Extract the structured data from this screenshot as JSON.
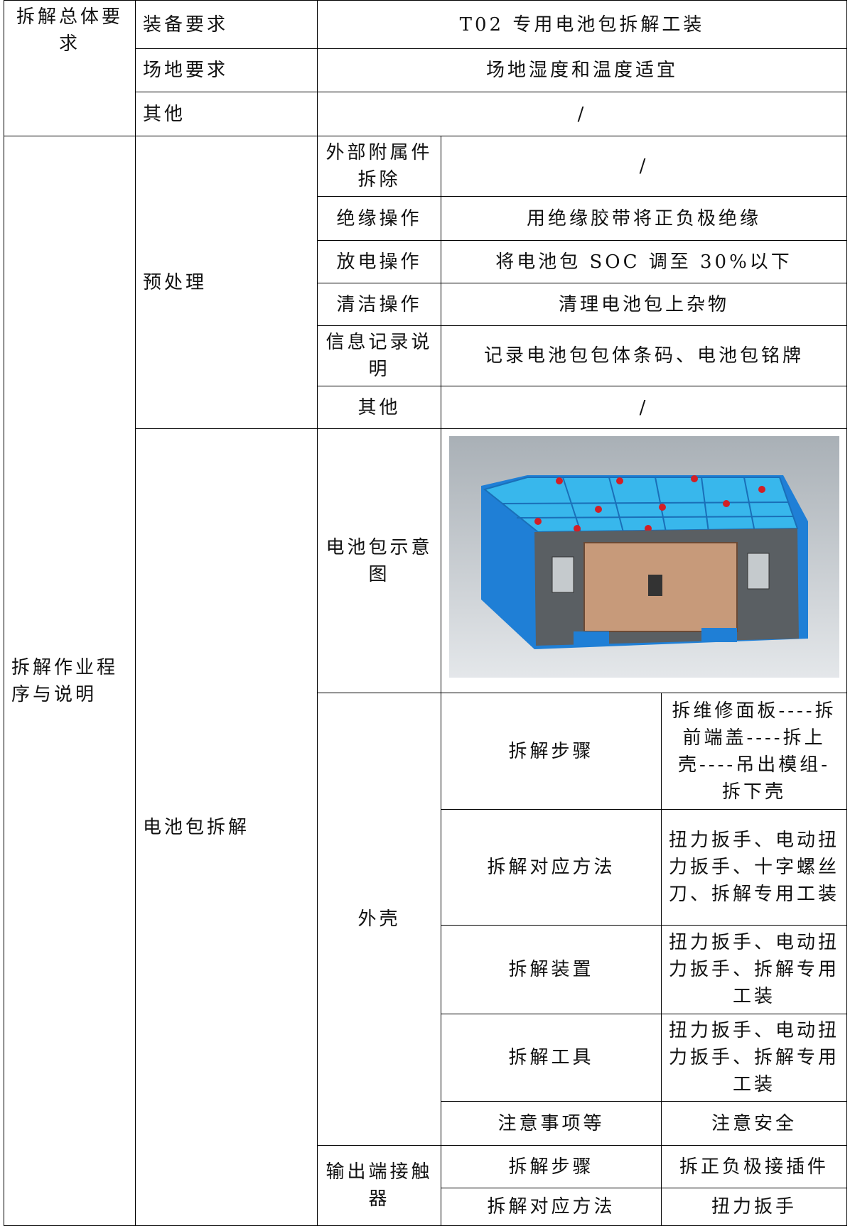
{
  "general": {
    "label": "拆解总体要求",
    "rows": [
      [
        "装备要求",
        "T02 专用电池包拆解工装"
      ],
      [
        "场地要求",
        "场地湿度和温度适宜"
      ],
      [
        "其他",
        "/"
      ]
    ]
  },
  "procedure": {
    "label": "拆解作业程序与说明",
    "pretreatment": {
      "label": "预处理",
      "rows": [
        [
          "外部附属件拆除",
          "/"
        ],
        [
          "绝缘操作",
          "用绝缘胶带将正负极绝缘"
        ],
        [
          "放电操作",
          "将电池包 SOC 调至 30%以下"
        ],
        [
          "清洁操作",
          "清理电池包上杂物"
        ],
        [
          "信息记录说明",
          "记录电池包包体条码、电池包铭牌"
        ],
        [
          "其他",
          "/"
        ]
      ]
    },
    "disassembly": {
      "label": "电池包拆解",
      "diagram_label": "电池包示意图",
      "shell": {
        "label": "外壳",
        "rows": [
          [
            "拆解步骤",
            "拆维修面板----拆前端盖----拆上壳----吊出模组-拆下壳"
          ],
          [
            "拆解对应方法",
            "扭力扳手、电动扭力扳手、十字螺丝刀、拆解专用工装"
          ],
          [
            "拆解装置",
            "扭力扳手、电动扭力扳手、拆解专用工装"
          ],
          [
            "拆解工具",
            "扭力扳手、电动扭力扳手、拆解专用工装"
          ],
          [
            "注意事项等",
            "注意安全"
          ]
        ]
      },
      "contactor": {
        "label": "输出端接触器",
        "rows": [
          [
            "拆解步骤",
            "拆正负极接插件"
          ],
          [
            "拆解对应方法",
            "扭力扳手"
          ]
        ]
      }
    }
  }
}
